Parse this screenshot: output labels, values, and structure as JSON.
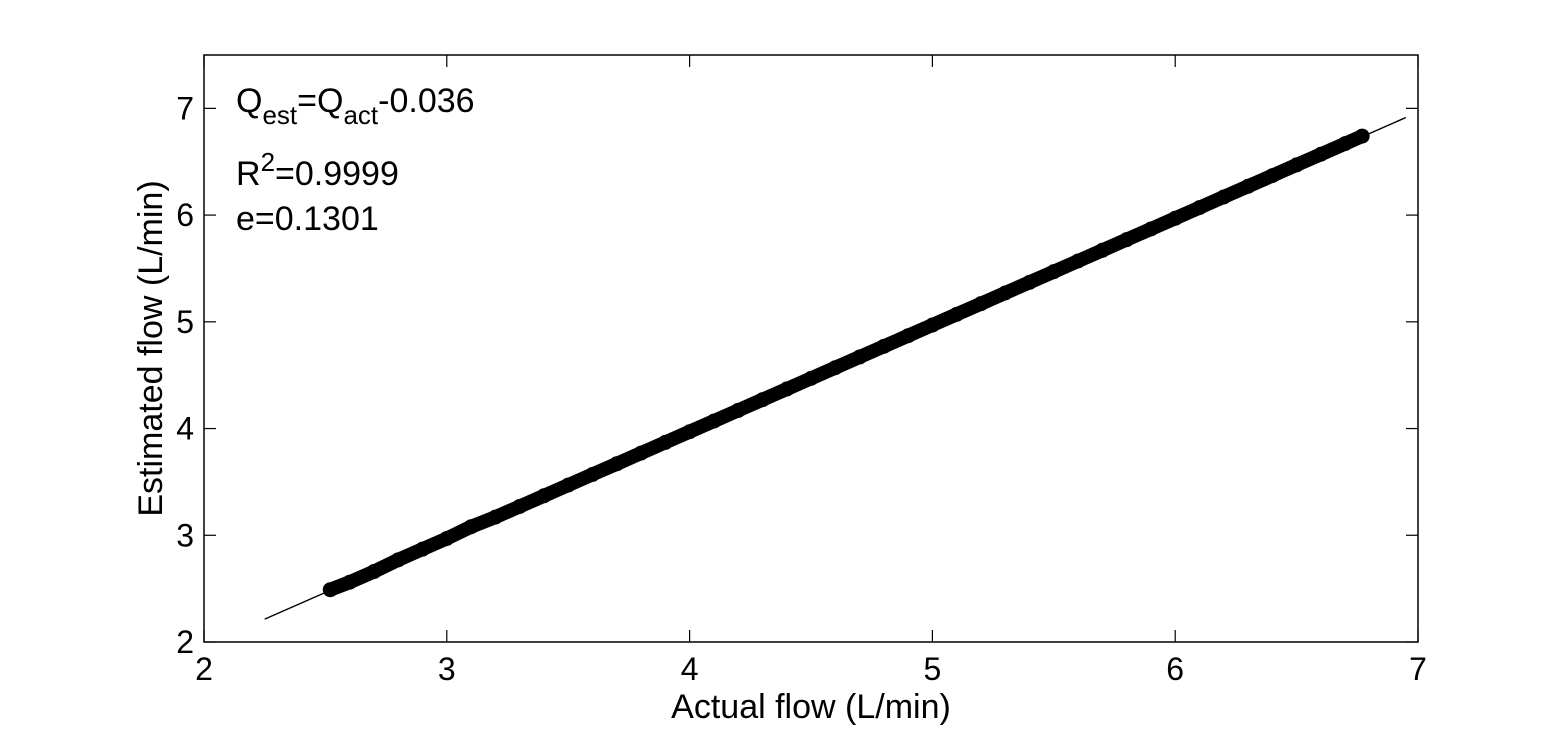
{
  "chart_data": {
    "type": "scatter",
    "xlabel": "Actual flow (L/min)",
    "ylabel": "Estimated flow (L/min)",
    "xlim": [
      2,
      7
    ],
    "ylim": [
      2,
      7.5
    ],
    "xticks": [
      2,
      3,
      4,
      5,
      6,
      7
    ],
    "yticks": [
      2,
      3,
      4,
      5,
      6,
      7
    ],
    "xtick_labels": [
      "2",
      "3",
      "4",
      "5",
      "6",
      "7"
    ],
    "ytick_labels": [
      "2",
      "3",
      "4",
      "5",
      "6",
      "7"
    ],
    "grid": false,
    "box": true,
    "marker_color": "#000000",
    "fit_line": {
      "slope": 1,
      "intercept": -0.036,
      "x_range": [
        2.25,
        6.95
      ],
      "color": "#000000"
    },
    "series": [
      {
        "x_range": [
          2.52,
          6.77
        ],
        "points": [
          [
            2.52,
            2.49
          ],
          [
            2.6,
            2.56
          ],
          [
            2.7,
            2.66
          ],
          [
            2.8,
            2.77
          ],
          [
            2.9,
            2.87
          ],
          [
            3.0,
            2.97
          ],
          [
            3.1,
            3.08
          ],
          [
            3.2,
            3.17
          ],
          [
            3.3,
            3.27
          ],
          [
            3.4,
            3.37
          ],
          [
            3.5,
            3.47
          ],
          [
            3.6,
            3.57
          ],
          [
            3.7,
            3.67
          ],
          [
            3.8,
            3.77
          ],
          [
            3.9,
            3.87
          ],
          [
            4.0,
            3.97
          ],
          [
            4.1,
            4.07
          ],
          [
            4.2,
            4.17
          ],
          [
            4.3,
            4.27
          ],
          [
            4.4,
            4.37
          ],
          [
            4.5,
            4.47
          ],
          [
            4.6,
            4.57
          ],
          [
            4.7,
            4.67
          ],
          [
            4.8,
            4.77
          ],
          [
            4.9,
            4.87
          ],
          [
            5.0,
            4.97
          ],
          [
            5.1,
            5.07
          ],
          [
            5.2,
            5.17
          ],
          [
            5.3,
            5.27
          ],
          [
            5.4,
            5.37
          ],
          [
            5.5,
            5.47
          ],
          [
            5.6,
            5.57
          ],
          [
            5.7,
            5.67
          ],
          [
            5.8,
            5.77
          ],
          [
            5.9,
            5.87
          ],
          [
            6.0,
            5.97
          ],
          [
            6.1,
            6.07
          ],
          [
            6.2,
            6.17
          ],
          [
            6.3,
            6.27
          ],
          [
            6.4,
            6.37
          ],
          [
            6.5,
            6.47
          ],
          [
            6.6,
            6.57
          ],
          [
            6.7,
            6.67
          ],
          [
            6.77,
            6.74
          ]
        ]
      }
    ],
    "annotations": {
      "equation": {
        "lhs_main": "Q",
        "lhs_sub": "est",
        "equals_q": "=Q",
        "rhs_sub": "act",
        "rhs_tail": "-0.036"
      },
      "r2": {
        "main": "R",
        "sup": "2",
        "tail": "=0.9999"
      },
      "error": "e=0.1301"
    }
  }
}
